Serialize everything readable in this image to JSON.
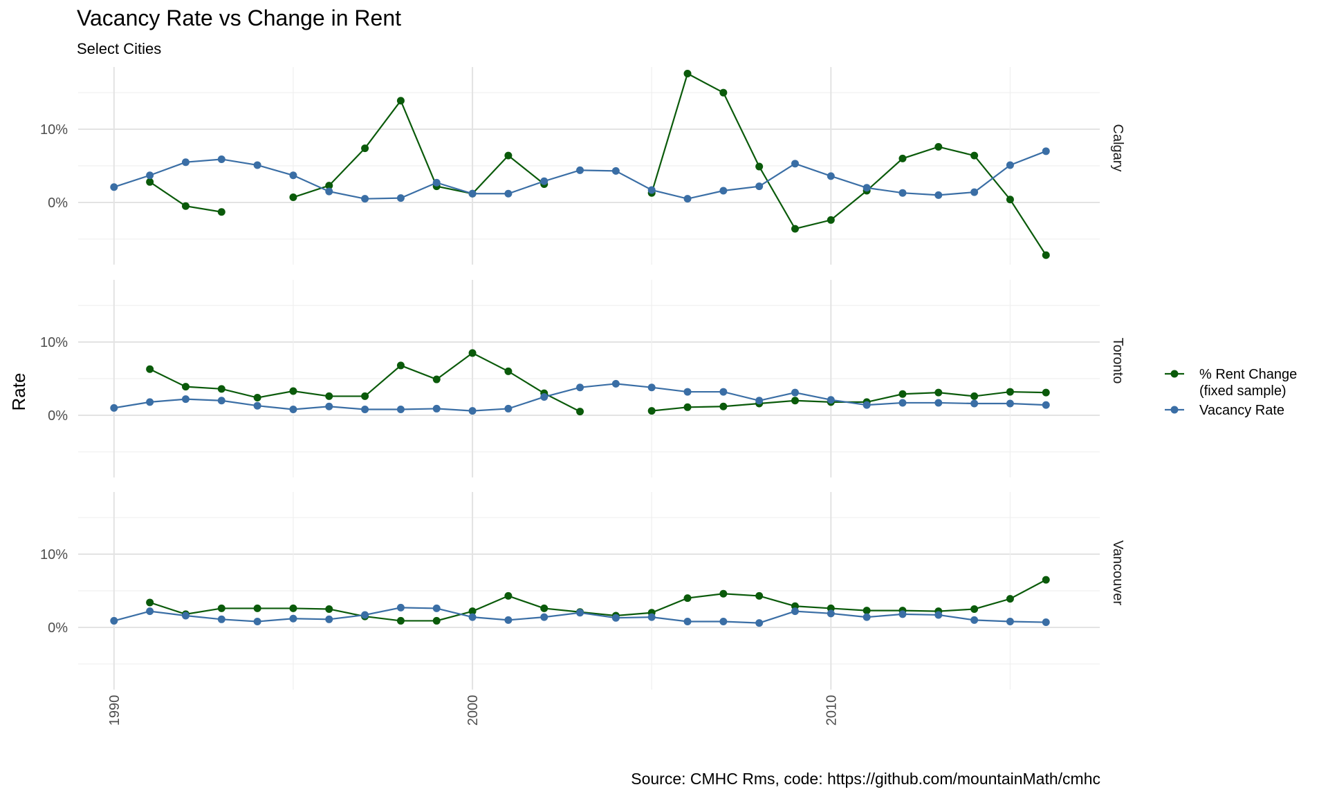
{
  "chart_data": {
    "type": "line",
    "title": "Vacancy Rate vs Change in Rent",
    "subtitle": "Select Cities",
    "caption": "Source: CMHC Rms, code: https://github.com/mountainMath/cmhc",
    "xlabel": "",
    "ylabel": "Rate",
    "x_ticks": [
      1990,
      2000,
      2010
    ],
    "y_ticks": [
      0,
      10
    ],
    "y_tick_labels": [
      "0%",
      "10%"
    ],
    "xlim": [
      1989,
      2017.5
    ],
    "ylim": [
      -8.5,
      18.5
    ],
    "grid": true,
    "legend_position": "right",
    "legend": [
      {
        "label": "% Rent Change\n(fixed sample)",
        "color": "#0a5a0a"
      },
      {
        "label": "Vacancy Rate",
        "color": "#3a6ea5"
      }
    ],
    "panels": [
      {
        "name": "Calgary",
        "series": [
          {
            "name": "% Rent Change (fixed sample)",
            "color": "#0a5a0a",
            "x": [
              1991,
              1992,
              1993,
              1994,
              1995,
              1996,
              1997,
              1998,
              1999,
              2000,
              2001,
              2002,
              2003,
              2004,
              2005,
              2006,
              2007,
              2008,
              2009,
              2010,
              2011,
              2012,
              2013,
              2014,
              2015,
              2016
            ],
            "y": [
              2.8,
              -0.5,
              -1.3,
              null,
              0.7,
              2.3,
              7.4,
              13.9,
              2.2,
              1.2,
              6.4,
              2.5,
              null,
              null,
              1.3,
              17.6,
              15.0,
              4.9,
              -3.6,
              -2.4,
              1.6,
              6.0,
              7.6,
              6.4,
              0.4,
              -7.2
            ]
          },
          {
            "name": "Vacancy Rate",
            "color": "#3a6ea5",
            "x": [
              1990,
              1991,
              1992,
              1993,
              1994,
              1995,
              1996,
              1997,
              1998,
              1999,
              2000,
              2001,
              2002,
              2003,
              2004,
              2005,
              2006,
              2007,
              2008,
              2009,
              2010,
              2011,
              2012,
              2013,
              2014,
              2015,
              2016
            ],
            "y": [
              2.1,
              3.7,
              5.5,
              5.9,
              5.1,
              3.7,
              1.5,
              0.5,
              0.6,
              2.7,
              1.2,
              1.2,
              2.9,
              4.4,
              4.3,
              1.7,
              0.5,
              1.6,
              2.2,
              5.3,
              3.6,
              2.0,
              1.3,
              1.0,
              1.4,
              5.1,
              7.0
            ]
          }
        ]
      },
      {
        "name": "Toronto",
        "series": [
          {
            "name": "% Rent Change (fixed sample)",
            "color": "#0a5a0a",
            "x": [
              1991,
              1992,
              1993,
              1994,
              1995,
              1996,
              1997,
              1998,
              1999,
              2000,
              2001,
              2002,
              2003,
              2004,
              2005,
              2006,
              2007,
              2008,
              2009,
              2010,
              2011,
              2012,
              2013,
              2014,
              2015,
              2016
            ],
            "y": [
              6.3,
              3.9,
              3.6,
              2.4,
              3.3,
              2.6,
              2.6,
              6.8,
              4.9,
              8.5,
              6.0,
              3.0,
              0.5,
              null,
              0.6,
              1.1,
              1.2,
              1.6,
              2.0,
              1.8,
              1.8,
              2.9,
              3.1,
              2.6,
              3.2,
              3.1
            ]
          },
          {
            "name": "Vacancy Rate",
            "color": "#3a6ea5",
            "x": [
              1990,
              1991,
              1992,
              1993,
              1994,
              1995,
              1996,
              1997,
              1998,
              1999,
              2000,
              2001,
              2002,
              2003,
              2004,
              2005,
              2006,
              2007,
              2008,
              2009,
              2010,
              2011,
              2012,
              2013,
              2014,
              2015,
              2016
            ],
            "y": [
              1.0,
              1.8,
              2.2,
              2.0,
              1.3,
              0.8,
              1.2,
              0.8,
              0.8,
              0.9,
              0.6,
              0.9,
              2.5,
              3.8,
              4.3,
              3.8,
              3.2,
              3.2,
              2.0,
              3.1,
              2.1,
              1.4,
              1.7,
              1.7,
              1.6,
              1.6,
              1.4
            ]
          }
        ]
      },
      {
        "name": "Vancouver",
        "series": [
          {
            "name": "% Rent Change (fixed sample)",
            "color": "#0a5a0a",
            "x": [
              1991,
              1992,
              1993,
              1994,
              1995,
              1996,
              1997,
              1998,
              1999,
              2000,
              2001,
              2002,
              2003,
              2004,
              2005,
              2006,
              2007,
              2008,
              2009,
              2010,
              2011,
              2012,
              2013,
              2014,
              2015,
              2016
            ],
            "y": [
              3.4,
              1.8,
              2.6,
              2.6,
              2.6,
              2.5,
              1.5,
              0.9,
              0.9,
              2.2,
              4.3,
              2.6,
              2.1,
              1.6,
              2.0,
              4.0,
              4.6,
              4.3,
              2.9,
              2.6,
              2.3,
              2.3,
              2.2,
              2.5,
              3.9,
              6.5
            ]
          },
          {
            "name": "Vacancy Rate",
            "color": "#3a6ea5",
            "x": [
              1990,
              1991,
              1992,
              1993,
              1994,
              1995,
              1996,
              1997,
              1998,
              1999,
              2000,
              2001,
              2002,
              2003,
              2004,
              2005,
              2006,
              2007,
              2008,
              2009,
              2010,
              2011,
              2012,
              2013,
              2014,
              2015,
              2016
            ],
            "y": [
              0.9,
              2.2,
              1.6,
              1.1,
              0.8,
              1.2,
              1.1,
              1.7,
              2.7,
              2.6,
              1.4,
              1.0,
              1.4,
              2.0,
              1.3,
              1.4,
              0.8,
              0.8,
              0.6,
              2.2,
              1.9,
              1.4,
              1.8,
              1.7,
              1.0,
              0.8,
              0.7
            ]
          }
        ]
      }
    ]
  }
}
